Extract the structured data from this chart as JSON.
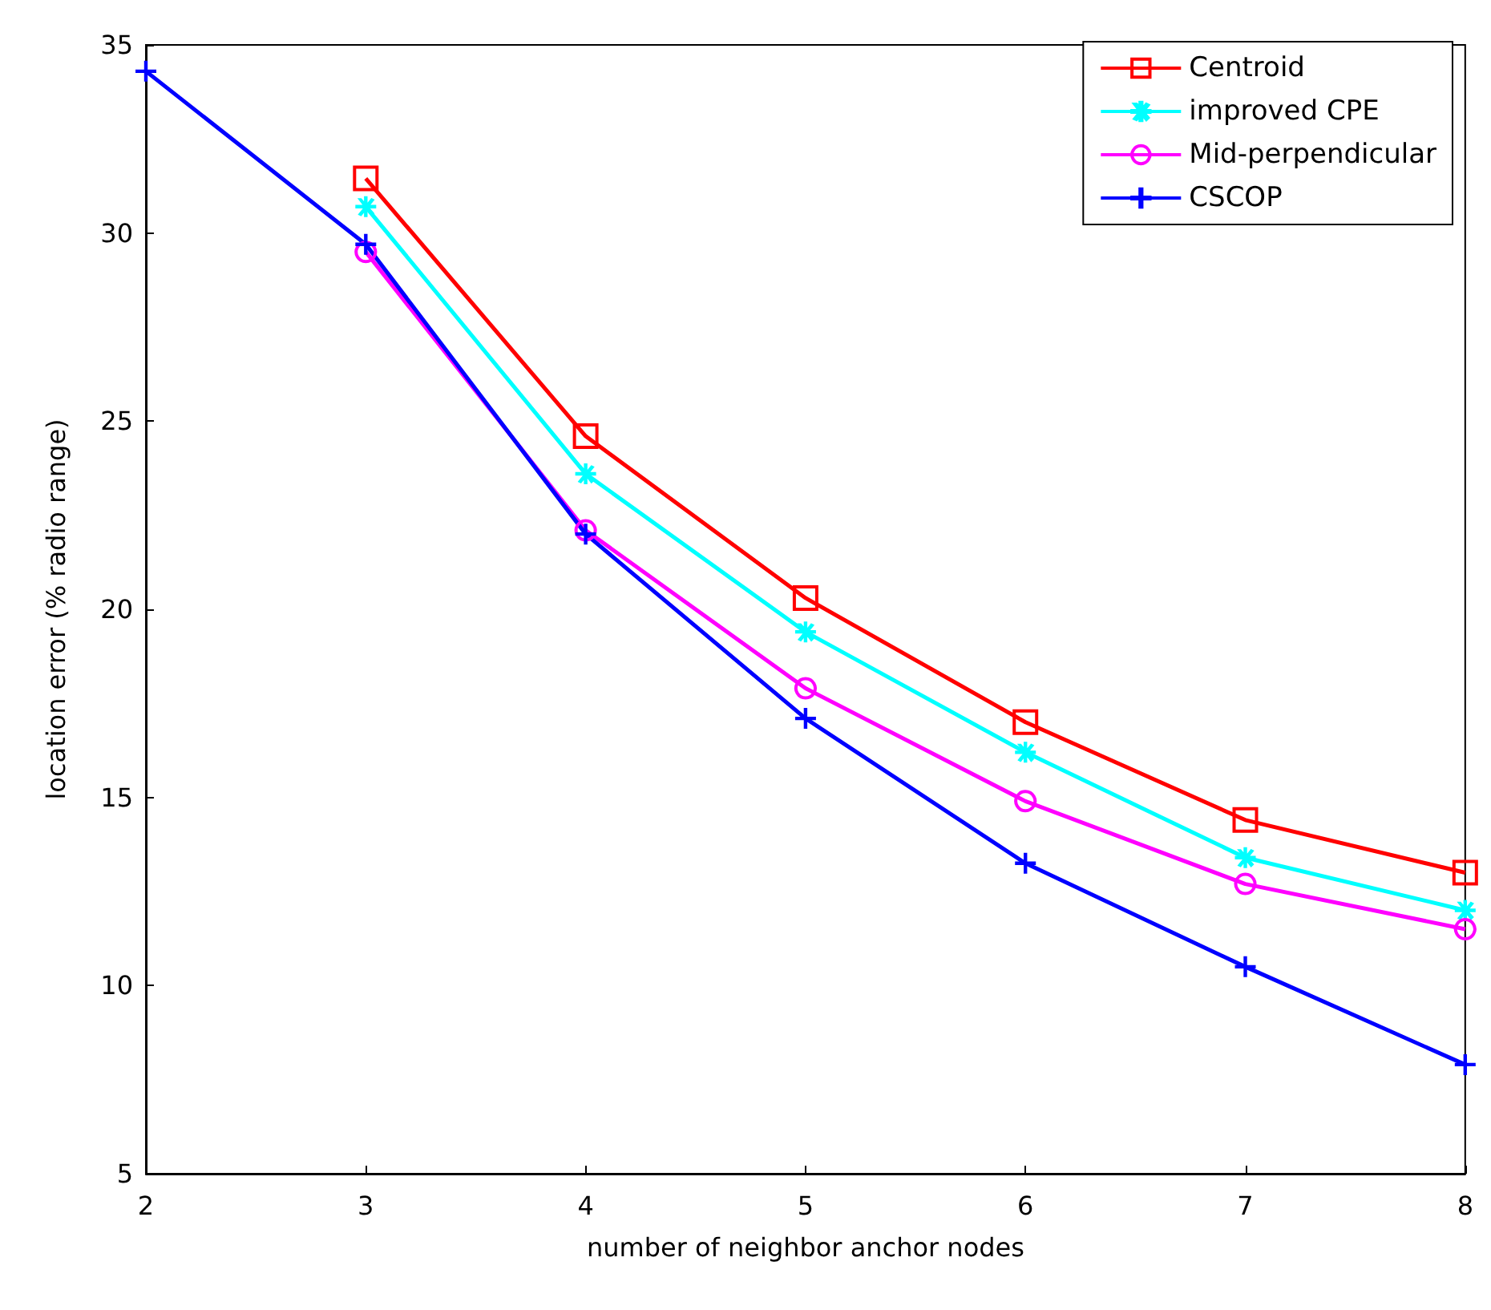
{
  "chart_data": {
    "type": "line",
    "xlabel": "number of neighbor anchor nodes",
    "ylabel": "location error (% radio range)",
    "xlim": [
      2,
      8
    ],
    "xticks": [
      2,
      3,
      4,
      5,
      6,
      7,
      8
    ],
    "ylim": [
      5,
      35
    ],
    "yticks": [
      5,
      10,
      15,
      20,
      25,
      30,
      35
    ],
    "grid": false,
    "legend": "top right",
    "series": [
      {
        "name": "Centroid",
        "color": "#ff0000",
        "marker": "square",
        "x": [
          3,
          4,
          5,
          6,
          7,
          8
        ],
        "values": [
          31.45,
          24.6,
          20.3,
          17.0,
          14.4,
          13.0
        ]
      },
      {
        "name": "improved CPE",
        "color": "#00ffff",
        "marker": "star",
        "x": [
          3,
          4,
          5,
          6,
          7,
          8
        ],
        "values": [
          30.7,
          23.6,
          19.4,
          16.2,
          13.4,
          12.0
        ]
      },
      {
        "name": "Mid-perpendicular",
        "color": "#ff00ff",
        "marker": "circle",
        "x": [
          3,
          4,
          5,
          6,
          7,
          8
        ],
        "values": [
          29.5,
          22.1,
          17.9,
          14.9,
          12.7,
          11.5
        ]
      },
      {
        "name": "CSCOP",
        "color": "#0000ff",
        "marker": "cross",
        "x": [
          2,
          3,
          4,
          5,
          6,
          7,
          8
        ],
        "values": [
          34.3,
          29.7,
          22.0,
          17.1,
          13.25,
          10.5,
          7.9
        ]
      }
    ]
  }
}
